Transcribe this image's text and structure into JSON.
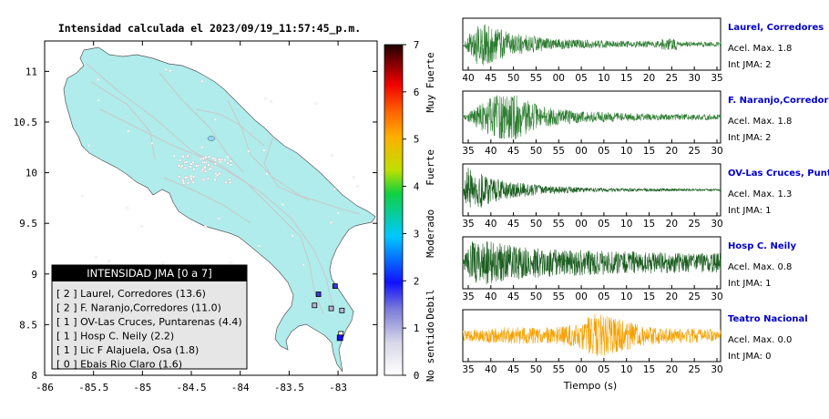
{
  "title": "Intensidad calculada el 2023/09/19_11:57:45_p.m.",
  "chart_data": [
    {
      "type": "map",
      "xlim": [
        -86,
        -82.6
      ],
      "ylim": [
        8,
        11.3
      ],
      "xticks": [
        "-86",
        "-85.5",
        "-85",
        "-84.5",
        "-84",
        "-83.5",
        "-83"
      ],
      "yticks": [
        "11",
        "10.5",
        "10",
        "9.5",
        "9",
        "8.5",
        "8"
      ],
      "colorbar": {
        "range": [
          0,
          7
        ],
        "ticks": [
          "0",
          "1",
          "2",
          "3",
          "4",
          "5",
          "6",
          "7"
        ],
        "labels": [
          "No sentido",
          "Debil",
          "Moderado",
          "Fuerte",
          "Muy Fuerte"
        ]
      },
      "legend": {
        "title": "INTENSIDAD JMA [0 a 7]",
        "entries": [
          {
            "text": "[ 2 ]  Laurel, Corredores (13.6)",
            "lon": -83.03,
            "lat": 8.88,
            "jma": 2
          },
          {
            "text": "[ 2 ]  F. Naranjo,Corredores (11.0)",
            "lon": -83.2,
            "lat": 8.8,
            "jma": 2
          },
          {
            "text": "[ 1 ]  OV-Las Cruces, Puntarenas (4.4)",
            "lon": -82.96,
            "lat": 8.64,
            "jma": 1
          },
          {
            "text": "[ 1 ]  Hosp C. Neily (2.2)",
            "lon": -83.07,
            "lat": 8.66,
            "jma": 1
          },
          {
            "text": "[ 1 ]  Lic F Alajuela, Osa (1.8)",
            "lon": -83.24,
            "lat": 8.69,
            "jma": 1
          },
          {
            "text": "[ 0 ]  Ebais Rio Claro (1.6)",
            "lon": -82.97,
            "lat": 8.41,
            "jma": 0
          }
        ]
      }
    },
    {
      "type": "line",
      "xlabel": "Tiempo (s)",
      "series": [
        {
          "name": "Laurel, Corredores",
          "acel": "Acel. Max. 1.8",
          "jma": "Int JMA: 2",
          "color": "#2e7d32",
          "ticks": [
            "40",
            "45",
            "50",
            "55",
            "00",
            "05",
            "10",
            "15",
            "20",
            "25",
            "30",
            "35"
          ],
          "envelope": [
            [
              0,
              0.02
            ],
            [
              0.06,
              0.95
            ],
            [
              0.1,
              0.8
            ],
            [
              0.2,
              0.45
            ],
            [
              0.35,
              0.22
            ],
            [
              0.6,
              0.14
            ],
            [
              0.8,
              0.12
            ],
            [
              1,
              0.1
            ]
          ],
          "bursts": [
            [
              0.8,
              0.25
            ]
          ]
        },
        {
          "name": "F. Naranjo,Corredores",
          "acel": "Acel. Max. 1.8",
          "jma": "Int JMA: 2",
          "color": "#2e7d32",
          "ticks": [
            "35",
            "40",
            "45",
            "50",
            "55",
            "00",
            "05",
            "10",
            "15",
            "20",
            "25",
            "30"
          ],
          "envelope": [
            [
              0,
              0.05
            ],
            [
              0.05,
              0.4
            ],
            [
              0.12,
              0.9
            ],
            [
              0.2,
              0.95
            ],
            [
              0.3,
              0.45
            ],
            [
              0.45,
              0.25
            ],
            [
              0.7,
              0.14
            ],
            [
              1,
              0.12
            ]
          ],
          "bursts": []
        },
        {
          "name": "OV-Las Cruces, Puntar",
          "acel": "Acel. Max. 1.3",
          "jma": "Int JMA: 1",
          "color": "#1b5e20",
          "ticks": [
            "35",
            "40",
            "45",
            "50",
            "55",
            "00",
            "05",
            "10",
            "15",
            "20",
            "25",
            "30"
          ],
          "envelope": [
            [
              0,
              0.05
            ],
            [
              0.02,
              0.95
            ],
            [
              0.08,
              0.7
            ],
            [
              0.15,
              0.4
            ],
            [
              0.3,
              0.2
            ],
            [
              0.5,
              0.08
            ],
            [
              1,
              0.04
            ]
          ],
          "bursts": []
        },
        {
          "name": "Hosp C. Neily",
          "acel": "Acel. Max. 0.8",
          "jma": "Int JMA: 1",
          "color": "#1b5e20",
          "ticks": [
            "35",
            "40",
            "45",
            "50",
            "55",
            "00",
            "05",
            "10",
            "15",
            "20",
            "25",
            "30"
          ],
          "envelope": [
            [
              0,
              0.1
            ],
            [
              0.03,
              0.9
            ],
            [
              0.1,
              0.95
            ],
            [
              0.2,
              0.7
            ],
            [
              0.4,
              0.55
            ],
            [
              0.7,
              0.45
            ],
            [
              1,
              0.4
            ]
          ],
          "bursts": []
        },
        {
          "name": "Teatro Nacional",
          "acel": "Acel. Max. 0.0",
          "jma": "Int JMA: 0",
          "color": "#f5a000",
          "ticks": [
            "35",
            "40",
            "45",
            "50",
            "55",
            "00",
            "05",
            "10",
            "15",
            "20",
            "25",
            "30"
          ],
          "envelope": [
            [
              0,
              0.2
            ],
            [
              0.15,
              0.35
            ],
            [
              0.35,
              0.35
            ],
            [
              0.45,
              0.5
            ],
            [
              0.5,
              0.95
            ],
            [
              0.58,
              0.8
            ],
            [
              0.7,
              0.4
            ],
            [
              1,
              0.25
            ]
          ],
          "bursts": []
        }
      ]
    }
  ]
}
